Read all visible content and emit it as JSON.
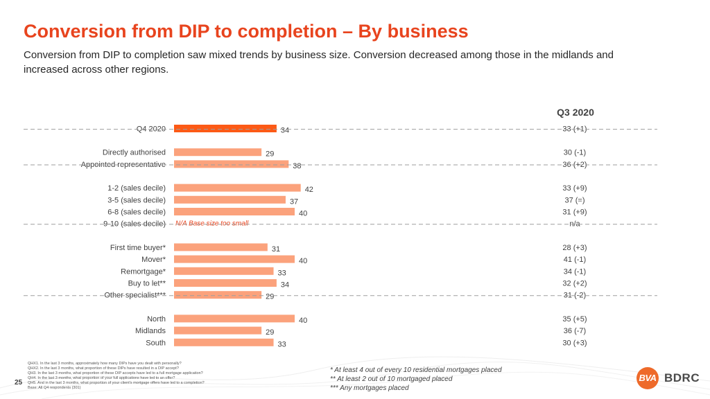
{
  "header": {
    "title": "Conversion from DIP to completion – By business",
    "subtitle": "Conversion from DIP to completion saw mixed trends by business size. Conversion decreased among those in the midlands and increased across other regions."
  },
  "colors": {
    "title": "#e8441e",
    "bar_primary": "#fc5a16",
    "bar_secondary": "#fba27c",
    "na_text": "#e8441e"
  },
  "chart_data": {
    "type": "bar",
    "orientation": "horizontal",
    "title": "Conversion from DIP to completion – By business",
    "value_max": 50,
    "comparison_header": "Q3 2020",
    "groups": [
      {
        "rows": [
          {
            "label": "Q4 2020",
            "value": 34,
            "value_label": "34",
            "comparison": "33 (+1)",
            "highlight": true
          }
        ]
      },
      {
        "rows": [
          {
            "label": "Directly authorised",
            "value": 29,
            "value_label": "29",
            "comparison": "30 (-1)"
          },
          {
            "label": "Appointed representative",
            "value": 38,
            "value_label": "38",
            "comparison": "36 (+2)"
          }
        ]
      },
      {
        "rows": [
          {
            "label": "1-2 (sales decile)",
            "value": 42,
            "value_label": "42",
            "comparison": "33 (+9)"
          },
          {
            "label": "3-5 (sales decile)",
            "value": 37,
            "value_label": "37",
            "comparison": "37 (=)"
          },
          {
            "label": "6-8 (sales decile)",
            "value": 40,
            "value_label": "40",
            "comparison": "31 (+9)"
          },
          {
            "label": "9-10 (sales decile)",
            "value": null,
            "value_label": "N/A Base size too small",
            "comparison": "n/a"
          }
        ]
      },
      {
        "rows": [
          {
            "label": "First time buyer*",
            "value": 31,
            "value_label": "31",
            "comparison": "28 (+3)"
          },
          {
            "label": "Mover*",
            "value": 40,
            "value_label": "40",
            "comparison": "41 (-1)"
          },
          {
            "label": "Remortgage*",
            "value": 33,
            "value_label": "33",
            "comparison": "34 (-1)"
          },
          {
            "label": "Buy to let**",
            "value": 34,
            "value_label": "34",
            "comparison": "32 (+2)"
          },
          {
            "label": "Other specialist***",
            "value": 29,
            "value_label": "29",
            "comparison": "31 (-2)"
          }
        ]
      },
      {
        "rows": [
          {
            "label": "North",
            "value": 40,
            "value_label": "40",
            "comparison": "35 (+5)"
          },
          {
            "label": "Midlands",
            "value": 29,
            "value_label": "29",
            "comparison": "36 (-7)"
          },
          {
            "label": "South",
            "value": 33,
            "value_label": "33",
            "comparison": "30 (+3)"
          }
        ]
      }
    ]
  },
  "footnotes": [
    "QHX1. In the last 3 months, approximately how many DIPs have you dealt with personally?",
    "QHX2. In the last 3 months, what proportion of these DIPs have resulted in a DIP accept?",
    "QH3. In the last 3 months, what proportion of these DIP accepts have led to a full mortgage application?",
    "QH4. In the last 3 months, what proportion of your full applications have led to an offer?",
    "QH5. And in the last 3 months, what proportion of your client's mortgage offers have led to a completion?",
    "Base: All Q4 respondents (301)"
  ],
  "legend_notes": [
    "* At least 4 out of every 10 residential mortgages placed",
    "** At least 2 out of 10 mortgaged placed",
    "*** Any mortgages placed"
  ],
  "page": {
    "number": "25"
  },
  "logo": {
    "mark": "BVA",
    "word": "BDRC"
  }
}
